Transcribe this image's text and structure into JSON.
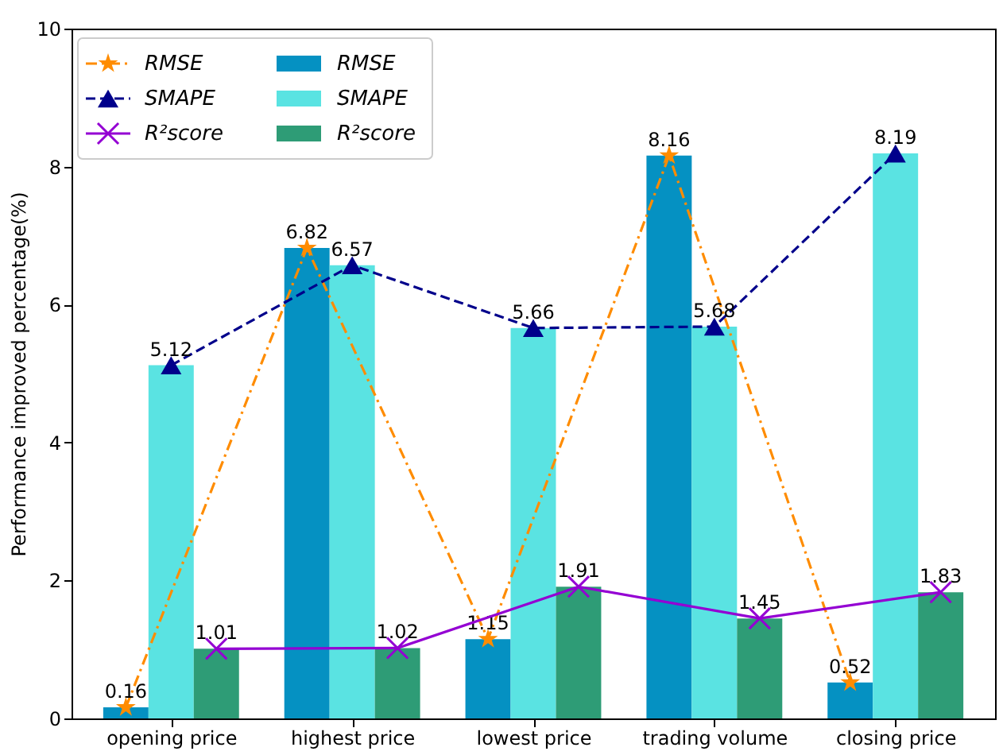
{
  "chart_data": {
    "type": "bar",
    "ylabel": "Performance improved percentage(%)",
    "categories": [
      "opening price",
      "highest price",
      "lowest price",
      "trading volume",
      "closing price"
    ],
    "ylim": [
      0,
      10
    ],
    "yticks": [
      0,
      2,
      4,
      6,
      8,
      10
    ],
    "grid": false,
    "legend": "top left",
    "series": [
      {
        "name": "RMSE",
        "type": "line",
        "color": "#ff8c00",
        "marker": "star",
        "line_style": "dashdot",
        "values": [
          0.16,
          6.82,
          1.15,
          8.16,
          0.52
        ],
        "value_labels": [
          "0.16",
          "6.82",
          "1.15",
          "8.16",
          "0.52"
        ]
      },
      {
        "name": "SMAPE",
        "type": "line",
        "color": "#00008b",
        "marker": "triangle",
        "line_style": "dashed",
        "values": [
          5.12,
          6.57,
          5.66,
          5.68,
          8.19
        ],
        "value_labels": [
          "5.12",
          "6.57",
          "5.66",
          "5.68",
          "8.19"
        ]
      },
      {
        "name": "R²score",
        "type": "line",
        "color": "#9400d3",
        "marker": "cross",
        "line_style": "solid",
        "values": [
          1.01,
          1.02,
          1.91,
          1.45,
          1.83
        ],
        "value_labels": [
          "1.01",
          "1.02",
          "1.91",
          "1.45",
          "1.83"
        ]
      },
      {
        "name": "RMSE",
        "type": "bar",
        "color": "#0591c2",
        "values": [
          0.16,
          6.82,
          1.15,
          8.16,
          0.52
        ]
      },
      {
        "name": "SMAPE",
        "type": "bar",
        "color": "#5ae3e2",
        "values": [
          5.12,
          6.57,
          5.66,
          5.68,
          8.19
        ]
      },
      {
        "name": "R²score",
        "type": "bar",
        "color": "#2e9c76",
        "values": [
          1.01,
          1.02,
          1.91,
          1.45,
          1.83
        ]
      }
    ]
  }
}
